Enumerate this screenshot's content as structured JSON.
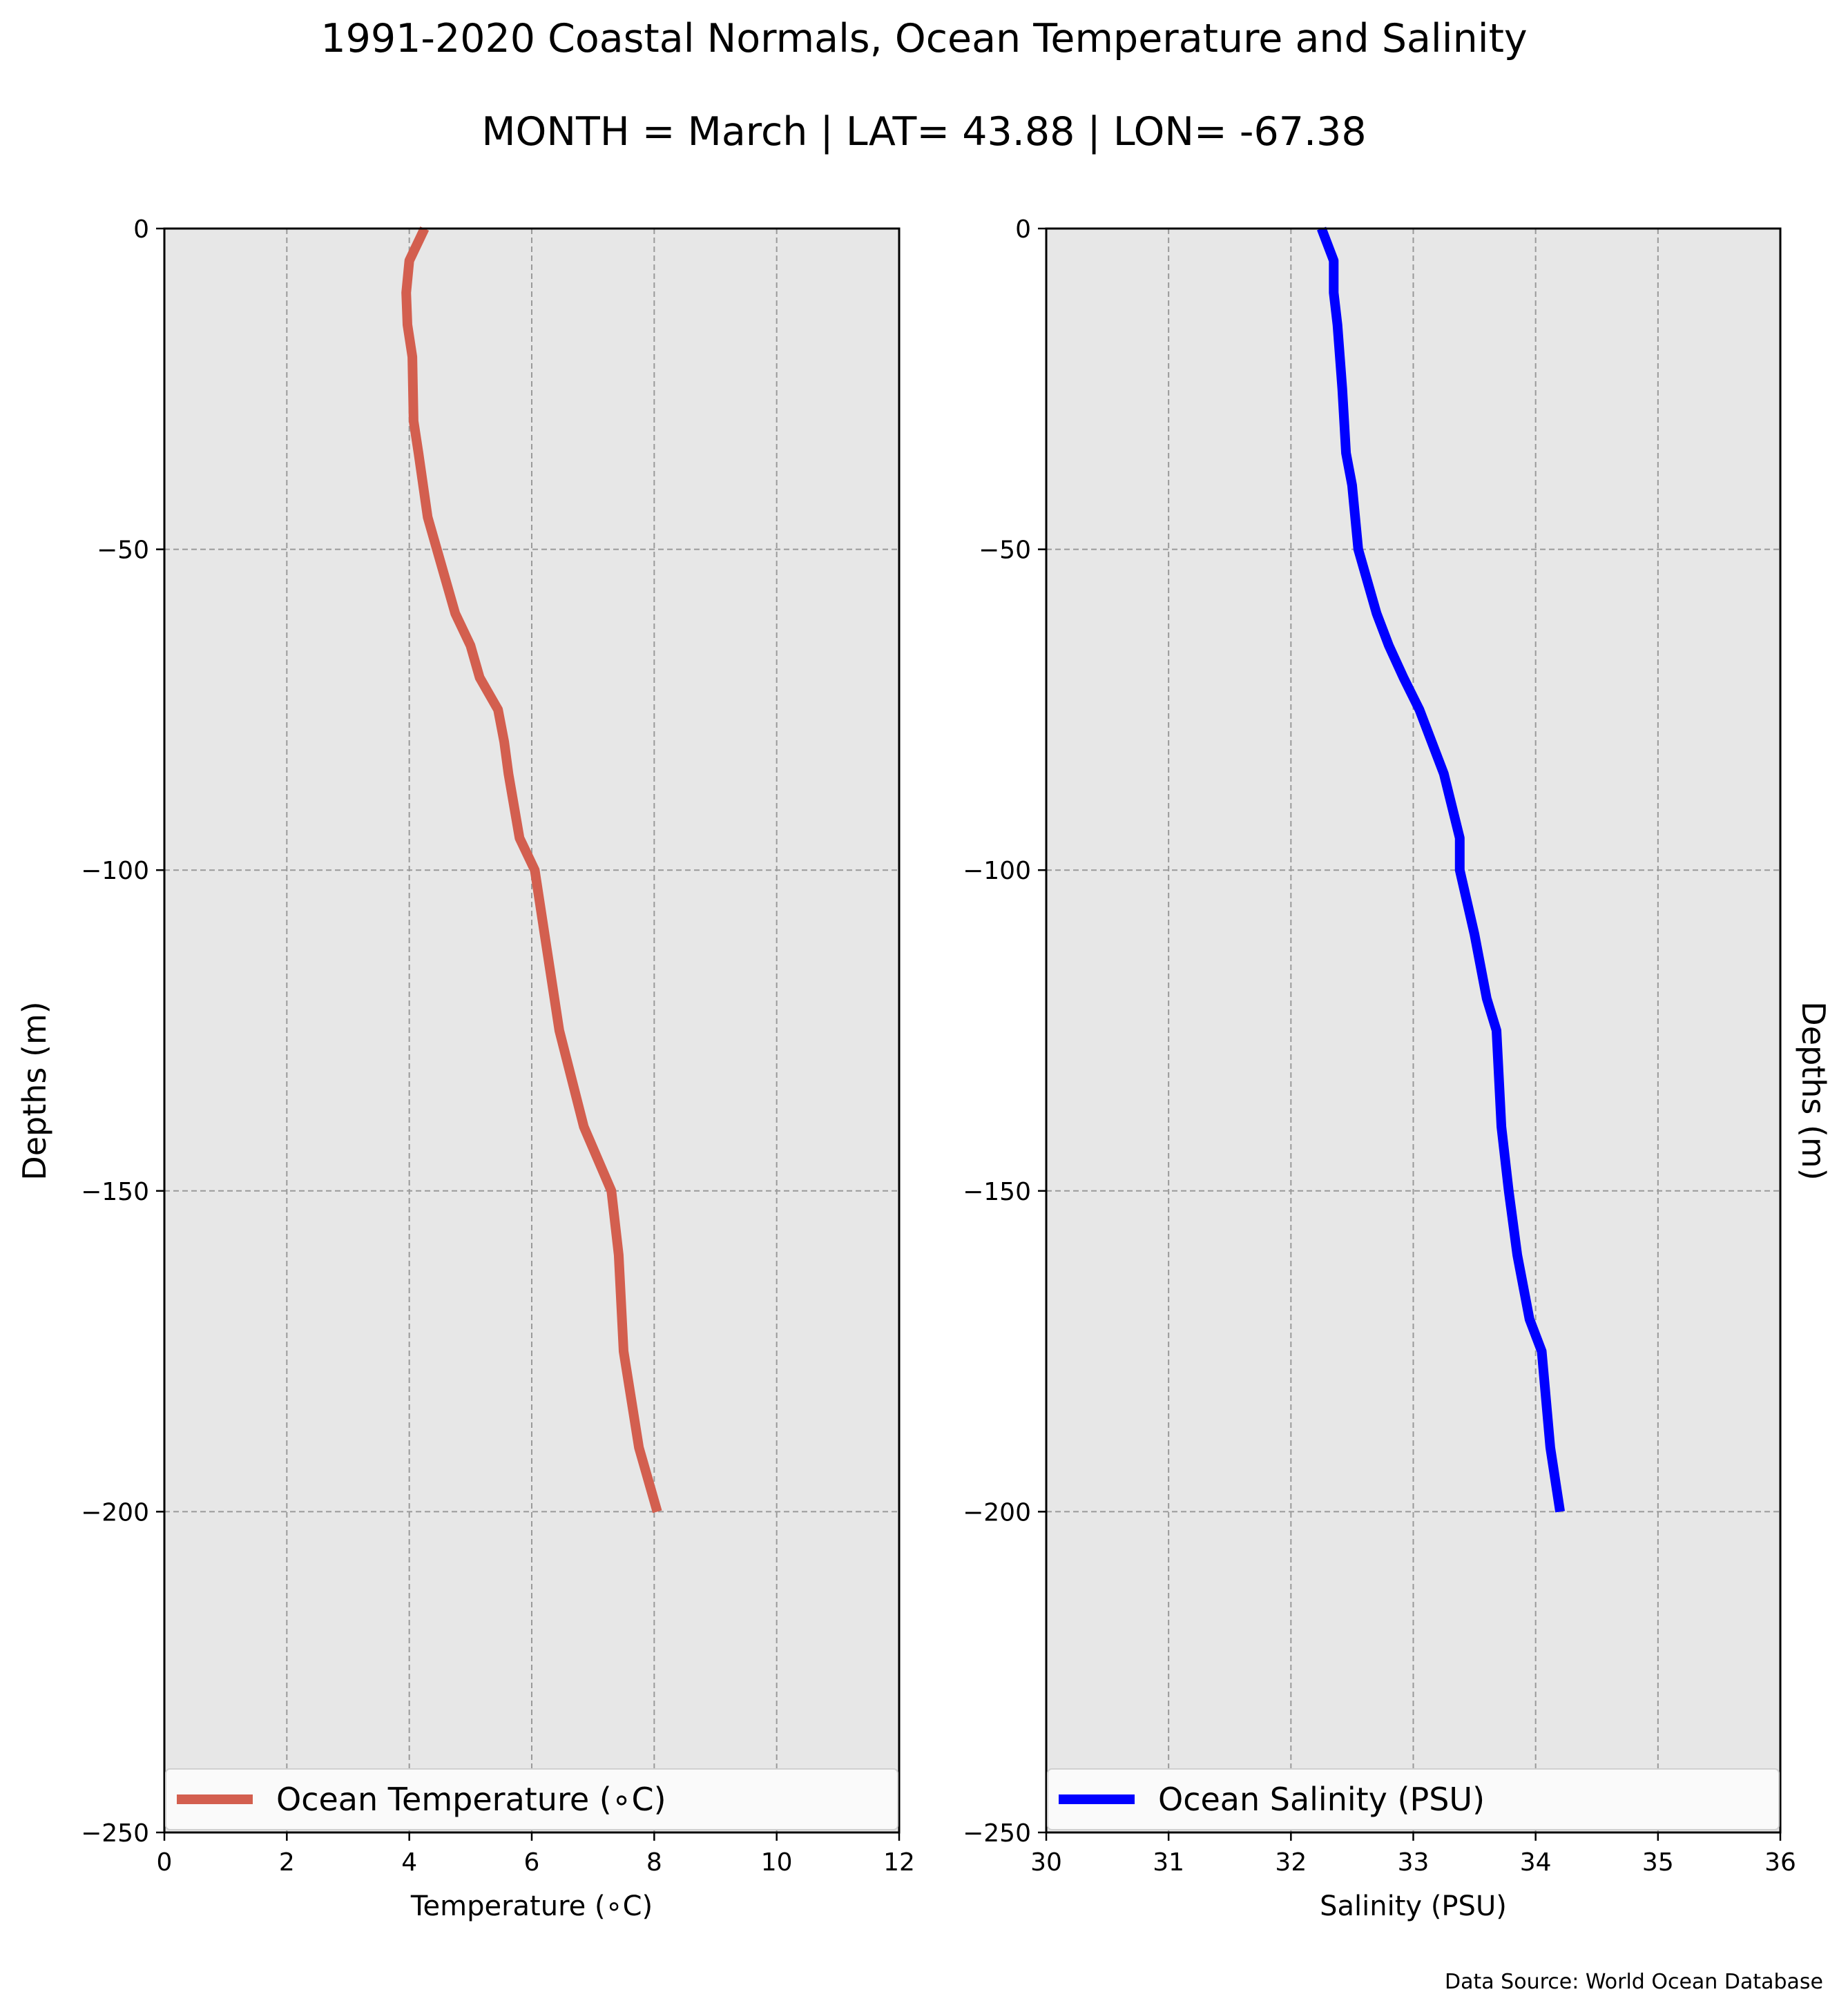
{
  "title": "1991-2020 Coastal Normals, Ocean Temperature and Salinity",
  "subtitle": "MONTH = March | LAT= 43.88 | LON= -67.38",
  "source": "Data Source: World Ocean Database",
  "chart_data": [
    {
      "type": "line",
      "xlabel": "Temperature (∘C)",
      "ylabel": "Depths (m)",
      "xlim": [
        0,
        12
      ],
      "ylim": [
        -250,
        0
      ],
      "xticks": [
        0,
        2,
        4,
        6,
        8,
        10,
        12
      ],
      "yticks": [
        0,
        -50,
        -100,
        -150,
        -200,
        -250
      ],
      "grid": true,
      "legend_position": "bottom",
      "series": [
        {
          "name": "Ocean Temperature (∘C)",
          "color": "#d35f4f",
          "x": [
            4.25,
            4.0,
            3.95,
            3.97,
            4.05,
            4.07,
            4.15,
            4.3,
            4.45,
            4.6,
            4.75,
            5.0,
            5.15,
            5.45,
            5.55,
            5.62,
            5.8,
            6.05,
            6.45,
            6.85,
            7.3,
            7.42,
            7.5,
            7.75,
            8.05
          ],
          "y": [
            0,
            -5,
            -10,
            -15,
            -20,
            -30,
            -35,
            -45,
            -50,
            -55,
            -60,
            -65,
            -70,
            -75,
            -80,
            -85,
            -95,
            -100,
            -125,
            -140,
            -150,
            -160,
            -175,
            -190,
            -200
          ]
        }
      ]
    },
    {
      "type": "line",
      "xlabel": "Salinity (PSU)",
      "ylabel": "Depths (m)",
      "xlim": [
        30,
        36
      ],
      "ylim": [
        -250,
        0
      ],
      "xticks": [
        30,
        31,
        32,
        33,
        34,
        35,
        36
      ],
      "yticks": [
        0,
        -50,
        -100,
        -150,
        -200,
        -250
      ],
      "grid": true,
      "legend_position": "bottom",
      "series": [
        {
          "name": "Ocean Salinity (PSU)",
          "color": "#0000ff",
          "x": [
            32.25,
            32.35,
            32.35,
            32.38,
            32.42,
            32.45,
            32.5,
            32.55,
            32.7,
            32.8,
            32.92,
            33.05,
            33.15,
            33.25,
            33.38,
            33.38,
            33.5,
            33.6,
            33.68,
            33.72,
            33.78,
            33.85,
            33.95,
            34.05,
            34.12,
            34.2
          ],
          "y": [
            0,
            -5,
            -10,
            -15,
            -25,
            -35,
            -40,
            -50,
            -60,
            -65,
            -70,
            -75,
            -80,
            -85,
            -95,
            -100,
            -110,
            -120,
            -125,
            -140,
            -150,
            -160,
            -170,
            -175,
            -190,
            -200
          ]
        }
      ]
    }
  ]
}
